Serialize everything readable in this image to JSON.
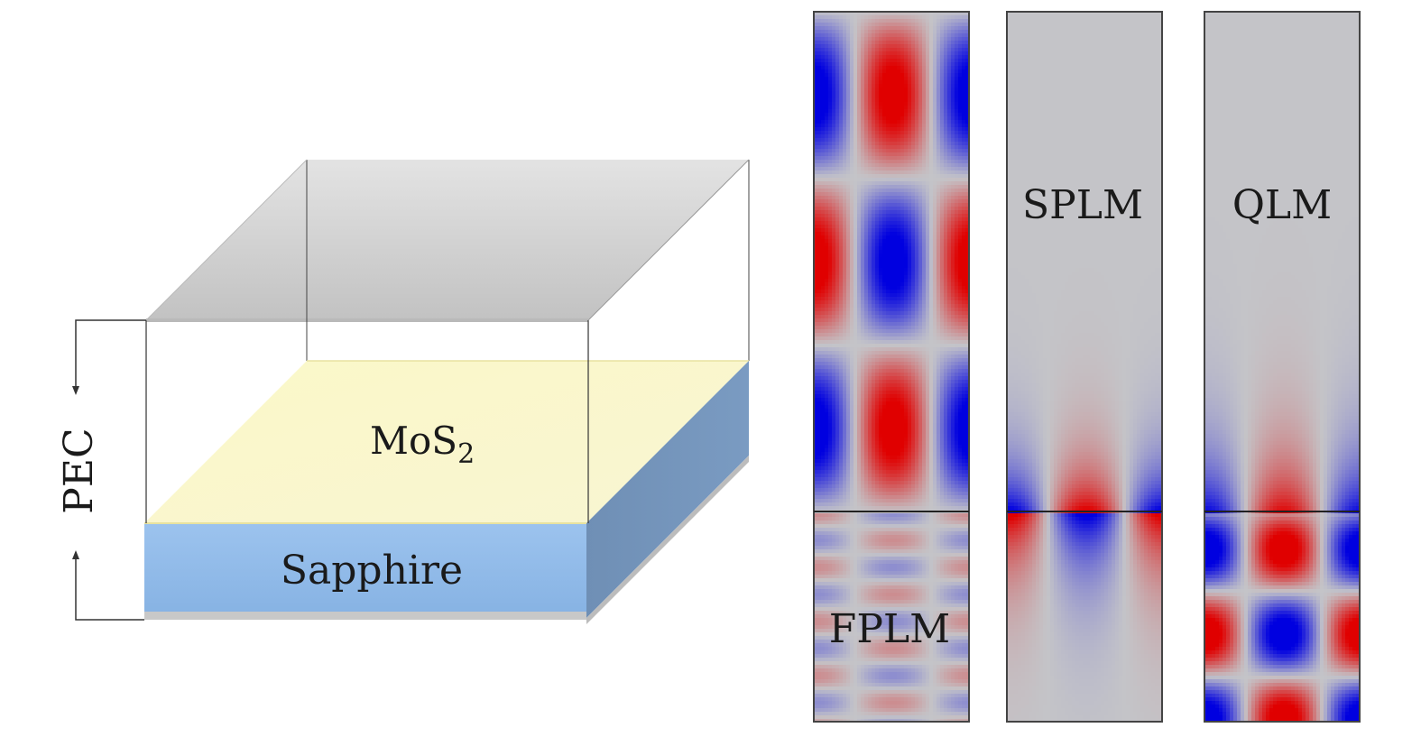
{
  "schematic": {
    "material_label": "MoS",
    "material_subscript": "2",
    "substrate_label": "Sapphire",
    "boundary_label": "PEC"
  },
  "mode_panels": [
    {
      "label": "FPLM"
    },
    {
      "label": "SPLM"
    },
    {
      "label": "QLM"
    }
  ],
  "colors": {
    "substrate": "#93bce8",
    "substrate_side": "#6f8fb3",
    "mos2_top": "#fbf7c6",
    "box_top": "#d9d9d9",
    "field_positive": "#e00000",
    "field_negative": "#0000e0",
    "field_zero": "#c4c4c8"
  }
}
